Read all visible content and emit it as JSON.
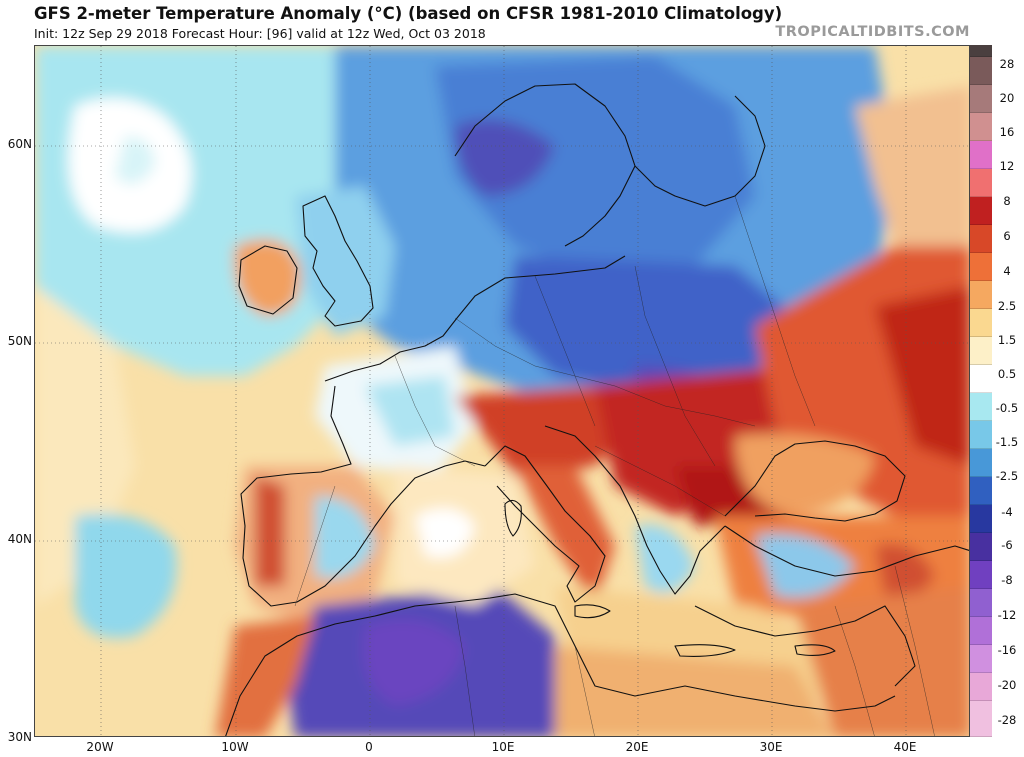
{
  "header": {
    "title": "GFS 2-meter Temperature Anomaly (°C) (based on CFSR 1981-2010 Climatology)",
    "subtitle": "Init: 12z Sep 29 2018   Forecast Hour: [96]   valid at 12z Wed, Oct 03 2018",
    "brand": "TROPICALTIDBITS.COM"
  },
  "map": {
    "lat_labels": [
      "60N",
      "50N",
      "40N",
      "30N"
    ],
    "lon_labels": [
      "20W",
      "10W",
      "0",
      "10E",
      "20E",
      "30E",
      "40E"
    ]
  },
  "colorbar": {
    "labels": [
      "28",
      "20",
      "16",
      "12",
      "8",
      "6",
      "4",
      "2.5",
      "1.5",
      "0.5",
      "-0.5",
      "-1.5",
      "-2.5",
      "-4",
      "-6",
      "-8",
      "-12",
      "-16",
      "-20",
      "-28"
    ],
    "colors": [
      "#4a3f3f",
      "#7a5a5a",
      "#a67a7a",
      "#d09090",
      "#e070c8",
      "#f07070",
      "#c02020",
      "#d84828",
      "#ee7038",
      "#f5a860",
      "#fad890",
      "#fdf0c8",
      "#ffffff",
      "#a8e8f0",
      "#78c8e8",
      "#4898d8",
      "#3060c0",
      "#2838a0",
      "#4830a0",
      "#7040c0",
      "#9060d0",
      "#b070d8",
      "#d090e0",
      "#e8a8d8",
      "#f0c0e0"
    ],
    "accent_warm": "#d84828",
    "accent_cold": "#3060c0"
  }
}
